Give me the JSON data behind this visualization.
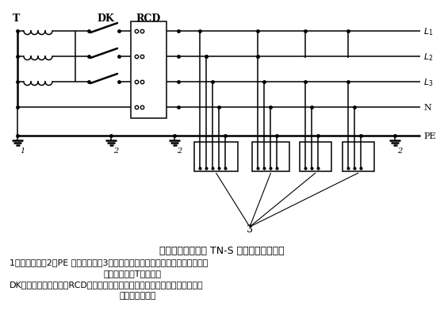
{
  "title": "专用变压器供电时 TN-S 接零保护系统示意",
  "cap1": "1－工作接地；2－PE 线重复接地；3－电气设备金属外壳（正常不带电的外露可",
  "cap2": "导电部分）；T－变压器",
  "cap3": "DK－总电源隔离开关；RCD－总漏电保护器（兼有短路、过载、漏电保护功能",
  "cap4": "的漏电断路器）",
  "bg": "#ffffff",
  "lw": 1.1,
  "lw2": 1.8
}
